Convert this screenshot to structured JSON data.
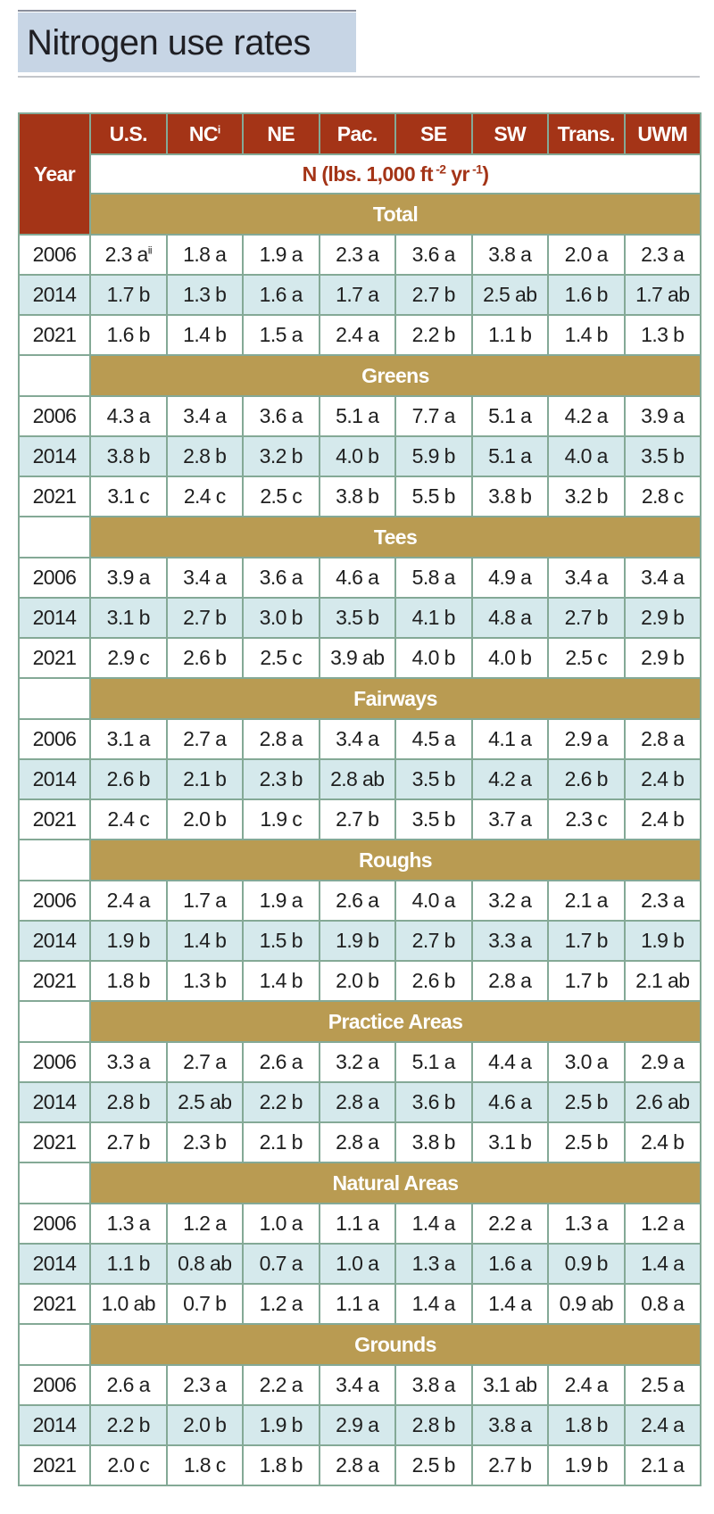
{
  "title": "Nitrogen use rates",
  "header": {
    "year_label": "Year",
    "regions": [
      {
        "label": "U.S.",
        "sup": ""
      },
      {
        "label": "NC",
        "sup": "i"
      },
      {
        "label": "NE",
        "sup": ""
      },
      {
        "label": "Pac.",
        "sup": ""
      },
      {
        "label": "SE",
        "sup": ""
      },
      {
        "label": "SW",
        "sup": ""
      },
      {
        "label": "Trans.",
        "sup": ""
      },
      {
        "label": "UWM",
        "sup": ""
      }
    ],
    "units_pre": "N (lbs. 1,000 ft",
    "units_sup1": " -2",
    "units_mid": " yr",
    "units_sup2": " -1",
    "units_post": ")"
  },
  "sections": [
    {
      "name": "Total",
      "rows": [
        {
          "year": "2006",
          "values": [
            "2.3 a",
            "1.8 a",
            "1.9 a",
            "2.3 a",
            "3.6 a",
            "3.8 a",
            "2.0 a",
            "2.3 a"
          ],
          "first_sup": "ii"
        },
        {
          "year": "2014",
          "values": [
            "1.7 b",
            "1.3 b",
            "1.6 a",
            "1.7 a",
            "2.7 b",
            "2.5 ab",
            "1.6 b",
            "1.7 ab"
          ]
        },
        {
          "year": "2021",
          "values": [
            "1.6 b",
            "1.4 b",
            "1.5 a",
            "2.4 a",
            "2.2 b",
            "1.1 b",
            "1.4 b",
            "1.3 b"
          ]
        }
      ]
    },
    {
      "name": "Greens",
      "rows": [
        {
          "year": "2006",
          "values": [
            "4.3 a",
            "3.4 a",
            "3.6 a",
            "5.1 a",
            "7.7 a",
            "5.1 a",
            "4.2 a",
            "3.9 a"
          ]
        },
        {
          "year": "2014",
          "values": [
            "3.8 b",
            "2.8 b",
            "3.2 b",
            "4.0 b",
            "5.9 b",
            "5.1 a",
            "4.0 a",
            "3.5 b"
          ]
        },
        {
          "year": "2021",
          "values": [
            "3.1 c",
            "2.4 c",
            "2.5 c",
            "3.8 b",
            "5.5 b",
            "3.8 b",
            "3.2 b",
            "2.8 c"
          ]
        }
      ]
    },
    {
      "name": "Tees",
      "rows": [
        {
          "year": "2006",
          "values": [
            "3.9 a",
            "3.4 a",
            "3.6 a",
            "4.6 a",
            "5.8 a",
            "4.9 a",
            "3.4 a",
            "3.4 a"
          ]
        },
        {
          "year": "2014",
          "values": [
            "3.1 b",
            "2.7 b",
            "3.0 b",
            "3.5 b",
            "4.1 b",
            "4.8 a",
            "2.7 b",
            "2.9 b"
          ]
        },
        {
          "year": "2021",
          "values": [
            "2.9 c",
            "2.6 b",
            "2.5 c",
            "3.9 ab",
            "4.0 b",
            "4.0 b",
            "2.5 c",
            "2.9 b"
          ]
        }
      ]
    },
    {
      "name": "Fairways",
      "rows": [
        {
          "year": "2006",
          "values": [
            "3.1 a",
            "2.7 a",
            "2.8 a",
            "3.4 a",
            "4.5 a",
            "4.1 a",
            "2.9 a",
            "2.8 a"
          ]
        },
        {
          "year": "2014",
          "values": [
            "2.6 b",
            "2.1 b",
            "2.3 b",
            "2.8 ab",
            "3.5 b",
            "4.2 a",
            "2.6 b",
            "2.4 b"
          ]
        },
        {
          "year": "2021",
          "values": [
            "2.4 c",
            "2.0 b",
            "1.9 c",
            "2.7 b",
            "3.5 b",
            "3.7 a",
            "2.3 c",
            "2.4 b"
          ]
        }
      ]
    },
    {
      "name": "Roughs",
      "rows": [
        {
          "year": "2006",
          "values": [
            "2.4 a",
            "1.7 a",
            "1.9 a",
            "2.6 a",
            "4.0 a",
            "3.2 a",
            "2.1 a",
            "2.3 a"
          ]
        },
        {
          "year": "2014",
          "values": [
            "1.9 b",
            "1.4 b",
            "1.5 b",
            "1.9 b",
            "2.7 b",
            "3.3 a",
            "1.7 b",
            "1.9 b"
          ]
        },
        {
          "year": "2021",
          "values": [
            "1.8 b",
            "1.3 b",
            "1.4 b",
            "2.0 b",
            "2.6 b",
            "2.8 a",
            "1.7 b",
            "2.1 ab"
          ]
        }
      ]
    },
    {
      "name": "Practice Areas",
      "rows": [
        {
          "year": "2006",
          "values": [
            "3.3 a",
            "2.7 a",
            "2.6 a",
            "3.2 a",
            "5.1 a",
            "4.4 a",
            "3.0 a",
            "2.9 a"
          ]
        },
        {
          "year": "2014",
          "values": [
            "2.8 b",
            "2.5 ab",
            "2.2 b",
            "2.8 a",
            "3.6 b",
            "4.6 a",
            "2.5 b",
            "2.6 ab"
          ]
        },
        {
          "year": "2021",
          "values": [
            "2.7 b",
            "2.3 b",
            "2.1 b",
            "2.8 a",
            "3.8 b",
            "3.1 b",
            "2.5 b",
            "2.4 b"
          ]
        }
      ]
    },
    {
      "name": "Natural Areas",
      "rows": [
        {
          "year": "2006",
          "values": [
            "1.3 a",
            "1.2 a",
            "1.0 a",
            "1.1 a",
            "1.4 a",
            "2.2 a",
            "1.3 a",
            "1.2 a"
          ]
        },
        {
          "year": "2014",
          "values": [
            "1.1 b",
            "0.8 ab",
            "0.7 a",
            "1.0 a",
            "1.3 a",
            "1.6 a",
            "0.9 b",
            "1.4 a"
          ]
        },
        {
          "year": "2021",
          "values": [
            "1.0 ab",
            "0.7 b",
            "1.2 a",
            "1.1 a",
            "1.4 a",
            "1.4 a",
            "0.9 ab",
            "0.8 a"
          ]
        }
      ]
    },
    {
      "name": "Grounds",
      "rows": [
        {
          "year": "2006",
          "values": [
            "2.6 a",
            "2.3 a",
            "2.2 a",
            "3.4 a",
            "3.8 a",
            "3.1 ab",
            "2.4 a",
            "2.5 a"
          ]
        },
        {
          "year": "2014",
          "values": [
            "2.2 b",
            "2.0 b",
            "1.9 b",
            "2.9 a",
            "2.8 b",
            "3.8 a",
            "1.8 b",
            "2.4 a"
          ]
        },
        {
          "year": "2021",
          "values": [
            "2.0 c",
            "1.8 c",
            "1.8 b",
            "2.8 a",
            "2.5 b",
            "2.7 b",
            "1.9 b",
            "2.1 a"
          ]
        }
      ]
    }
  ]
}
